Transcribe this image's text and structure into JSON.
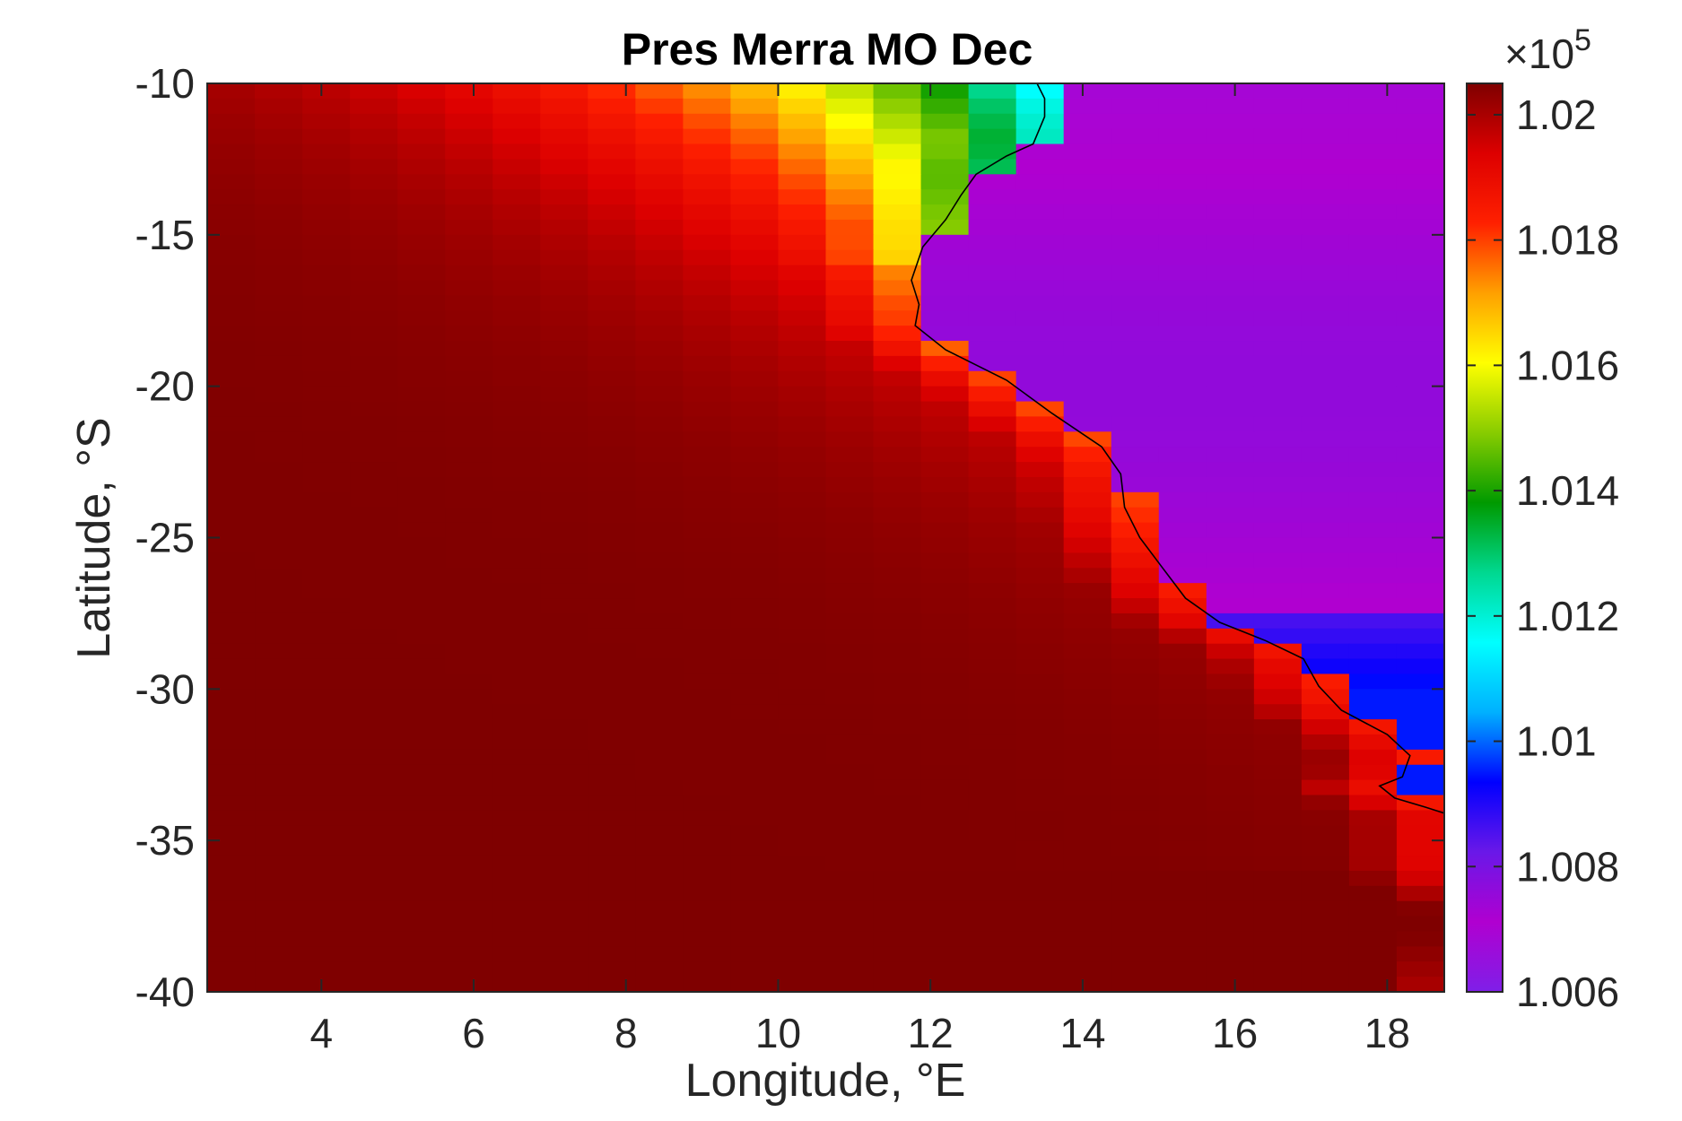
{
  "chart_data": {
    "type": "heatmap",
    "title": "Pres Merra MO Dec",
    "xlabel": "Longitude, °E",
    "ylabel": "Latitude, °S",
    "xlim": [
      2.5,
      18.75
    ],
    "ylim": [
      -40,
      -10
    ],
    "xticks": [
      4,
      6,
      8,
      10,
      12,
      14,
      16,
      18
    ],
    "xtick_labels": [
      "4",
      "6",
      "8",
      "10",
      "12",
      "14",
      "16",
      "18"
    ],
    "yticks": [
      -10,
      -15,
      -20,
      -25,
      -30,
      -35,
      -40
    ],
    "ytick_labels": [
      "-10",
      "-15",
      "-20",
      "-25",
      "-30",
      "-35",
      "-40"
    ],
    "grid": false,
    "colorbar": {
      "exponent_label": "×10",
      "exponent_power": "5",
      "range": [
        1.006,
        1.0205
      ],
      "ticks": [
        1.006,
        1.008,
        1.01,
        1.012,
        1.014,
        1.016,
        1.018,
        1.02
      ],
      "tick_labels": [
        "1.006",
        "1.008",
        "1.01",
        "1.012",
        "1.014",
        "1.016",
        "1.018",
        "1.02"
      ],
      "colormap": [
        "#7f1fe8",
        "#b000d0",
        "#6a18e8",
        "#0000ff",
        "#00b0ff",
        "#00ffff",
        "#00d890",
        "#009a00",
        "#88cc00",
        "#ffff00",
        "#ffa000",
        "#ff2000",
        "#dd0000",
        "#7f0000"
      ]
    },
    "grid_resolution": {
      "dlon": 0.625,
      "dlat": 0.5
    },
    "land_boundary": [
      [
        13.4,
        -10
      ],
      [
        13.5,
        -10.5
      ],
      [
        13.5,
        -11.1
      ],
      [
        13.35,
        -12.0
      ],
      [
        13.0,
        -12.4
      ],
      [
        12.6,
        -13.0
      ],
      [
        12.4,
        -13.7
      ],
      [
        12.2,
        -14.5
      ],
      [
        11.9,
        -15.4
      ],
      [
        11.75,
        -16.5
      ],
      [
        11.85,
        -17.3
      ],
      [
        11.8,
        -18.0
      ],
      [
        12.2,
        -18.8
      ],
      [
        13.0,
        -19.8
      ],
      [
        13.6,
        -20.9
      ],
      [
        14.25,
        -22.0
      ],
      [
        14.5,
        -22.9
      ],
      [
        14.55,
        -24.0
      ],
      [
        14.75,
        -25.0
      ],
      [
        15.05,
        -26.0
      ],
      [
        15.35,
        -27.0
      ],
      [
        15.8,
        -27.8
      ],
      [
        16.4,
        -28.4
      ],
      [
        16.9,
        -29.0
      ],
      [
        17.1,
        -29.9
      ],
      [
        17.4,
        -30.7
      ],
      [
        18.0,
        -31.5
      ],
      [
        18.3,
        -32.2
      ],
      [
        18.2,
        -32.9
      ],
      [
        17.9,
        -33.2
      ],
      [
        18.1,
        -33.6
      ],
      [
        18.5,
        -33.9
      ],
      [
        18.75,
        -34.1
      ]
    ]
  }
}
